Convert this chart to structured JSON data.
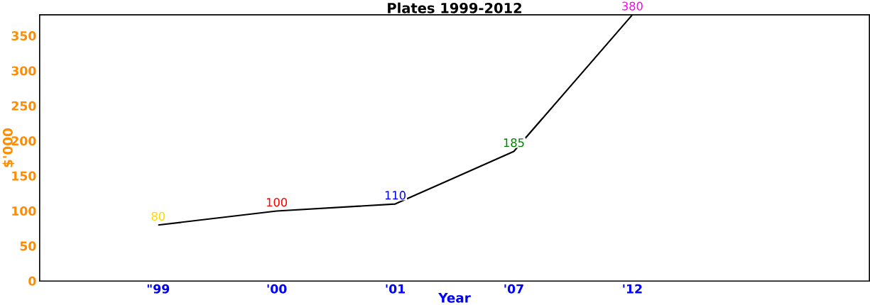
{
  "chart_data": {
    "type": "line",
    "title": "Plates 1999-2012",
    "xlabel": "Year",
    "ylabel": "$'000",
    "categories": [
      "\"99",
      "'00",
      "'01",
      "'07",
      "'12"
    ],
    "series": [
      {
        "color": "#000000",
        "values": [
          80,
          100,
          110,
          185,
          380
        ]
      }
    ],
    "colors": [
      "#ffd700",
      "#ff0000",
      "#0000ff",
      "#008000",
      "#ff00ff"
    ],
    "data_labels": true,
    "ylim": [
      0,
      380
    ],
    "yticks": [
      0,
      50,
      100,
      150,
      200,
      250,
      300,
      350
    ],
    "grid": false,
    "marker": "none",
    "line_style": "solid"
  }
}
